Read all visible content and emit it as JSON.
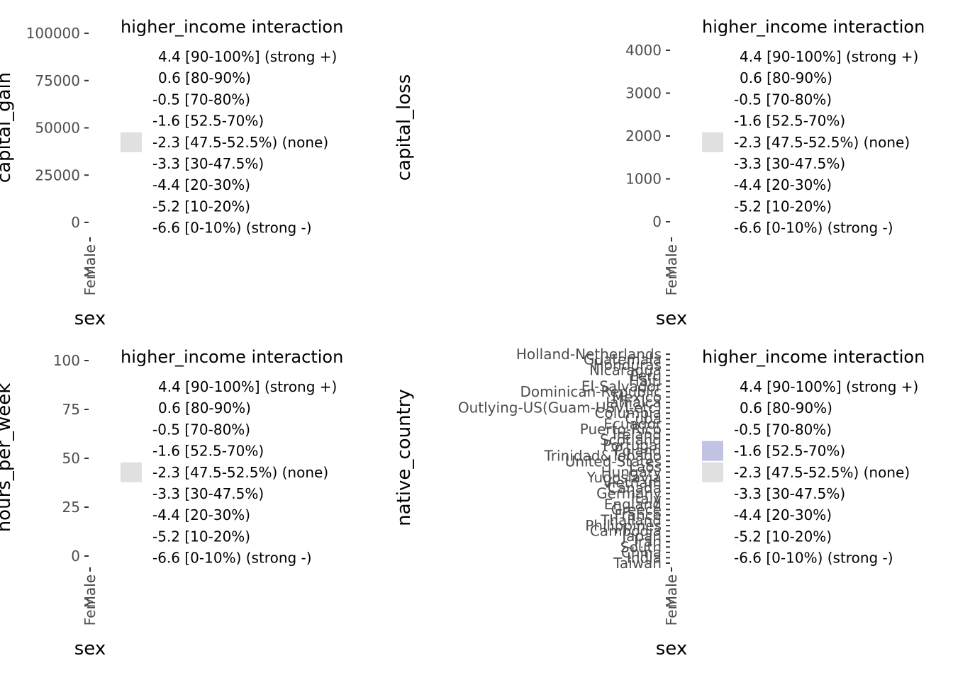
{
  "colors": {
    "tick": "#4d4d4d",
    "none_key": "#e0e0e0",
    "weak_positive_key": "#c0c3e2"
  },
  "legend": {
    "title": "higher_income interaction",
    "levels": [
      "4.4 [90-100%] (strong +)",
      "0.6 [80-90%)",
      "-0.5 [70-80%)",
      "-1.6 [52.5-70%)",
      "-2.3 [47.5-52.5%) (none)",
      "-3.3 [30-47.5%)",
      "-4.4 [20-30%)",
      "-5.2 [10-20%)",
      "-6.6 [0-10%) (strong -)"
    ]
  },
  "chart_data": [
    {
      "type": "heatmap",
      "xlabel": "sex",
      "ylabel": "capital_gain",
      "x_categories": [
        "Female",
        "Male"
      ],
      "y_ticks": [
        "0",
        "25000",
        "50000",
        "75000",
        "100000"
      ],
      "y_tick_values": [
        0,
        25000,
        50000,
        75000,
        100000
      ],
      "ylim": [
        0,
        100000
      ],
      "legend_keys": [
        "-2.3 [47.5-52.5%) (none)"
      ]
    },
    {
      "type": "heatmap",
      "xlabel": "sex",
      "ylabel": "capital_loss",
      "x_categories": [
        "Female",
        "Male"
      ],
      "y_ticks": [
        "0",
        "1000",
        "2000",
        "3000",
        "4000"
      ],
      "y_tick_values": [
        0,
        1000,
        2000,
        3000,
        4000
      ],
      "ylim": [
        0,
        4000
      ],
      "legend_keys": [
        "-2.3 [47.5-52.5%) (none)"
      ]
    },
    {
      "type": "heatmap",
      "xlabel": "sex",
      "ylabel": "hours_per_week",
      "x_categories": [
        "Female",
        "Male"
      ],
      "y_ticks": [
        "0",
        "25",
        "50",
        "75",
        "100"
      ],
      "y_tick_values": [
        0,
        25,
        50,
        75,
        100
      ],
      "ylim": [
        0,
        100
      ],
      "legend_keys": [
        "-2.3 [47.5-52.5%) (none)"
      ]
    },
    {
      "type": "heatmap",
      "xlabel": "sex",
      "ylabel": "native_country",
      "x_categories": [
        "Female",
        "Male"
      ],
      "y_categories": [
        "Taiwan",
        "India",
        "China",
        "South",
        "Iran",
        "Japan",
        "Cambodia",
        "Philippines",
        "Thailand",
        "France",
        "Greece",
        "England",
        "Italy",
        "Germany",
        "Canada",
        "Vietnam",
        "Yugoslavia",
        "Hungary",
        "Laos",
        "United-States",
        "Trinidad&Tobago",
        "Poland",
        "Portugal",
        "Scotland",
        "Ireland",
        "Puerto-Rico",
        "Ecuador",
        "Cuba",
        "Columbia",
        "Outlying-US(Guam-USVI-etc)",
        "Jamaica",
        "Mexico",
        "Dominican-Republic",
        "El-Salvador",
        "Haiti",
        "Peru",
        "Nicaragua",
        "Honduras",
        "Guatemala",
        "Holland-Netherlands"
      ],
      "legend_keys": [
        "-1.6 [52.5-70%)",
        "-2.3 [47.5-52.5%) (none)"
      ]
    }
  ]
}
